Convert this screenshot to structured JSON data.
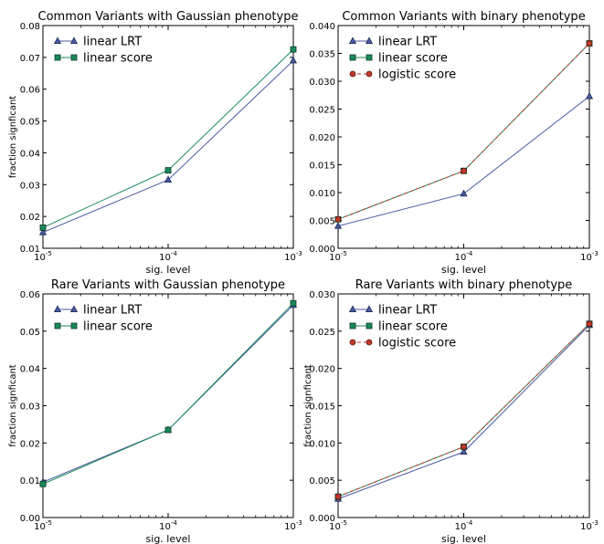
{
  "chart_data": [
    {
      "type": "line",
      "title": "Common Variants with Gaussian phenotype",
      "xlabel": "sig. level",
      "ylabel": "fraction signficant",
      "x_scale": "log",
      "x": [
        1e-05,
        0.0001,
        0.001
      ],
      "x_ticks": [
        "10",
        "10",
        "10"
      ],
      "x_tick_exponents": [
        "-5",
        "-4",
        "-3"
      ],
      "ylim": [
        0.01,
        0.08
      ],
      "y_ticks": [
        "0.01",
        "0.02",
        "0.03",
        "0.04",
        "0.05",
        "0.06",
        "0.07",
        "0.08"
      ],
      "legend_position": "top-left",
      "series": [
        {
          "name": "linear LRT",
          "values": [
            0.015,
            0.0315,
            0.069
          ],
          "color": "#4a5aa0",
          "marker": "triangle",
          "dash": "solid"
        },
        {
          "name": "linear score",
          "values": [
            0.0165,
            0.0345,
            0.0725
          ],
          "color": "#1a8a5a",
          "marker": "square",
          "dash": "solid"
        }
      ]
    },
    {
      "type": "line",
      "title": "Common Variants with binary phenotype",
      "xlabel": "sig. level",
      "ylabel": "",
      "x_scale": "log",
      "x": [
        1e-05,
        0.0001,
        0.001
      ],
      "x_ticks": [
        "10",
        "10",
        "10"
      ],
      "x_tick_exponents": [
        "-5",
        "-4",
        "-3"
      ],
      "ylim": [
        0.0,
        0.04
      ],
      "y_ticks": [
        "0.000",
        "0.005",
        "0.010",
        "0.015",
        "0.020",
        "0.025",
        "0.030",
        "0.035",
        "0.040"
      ],
      "legend_position": "top-left",
      "series": [
        {
          "name": "linear LRT",
          "values": [
            0.004,
            0.0098,
            0.0273
          ],
          "color": "#4a5aa0",
          "marker": "triangle",
          "dash": "solid"
        },
        {
          "name": "linear score",
          "values": [
            0.0052,
            0.0139,
            0.0368
          ],
          "color": "#1a8a5a",
          "marker": "square",
          "dash": "solid"
        },
        {
          "name": "logistic score",
          "values": [
            0.0052,
            0.0139,
            0.0368
          ],
          "color": "#c0392b",
          "marker": "circle",
          "dash": "dashed"
        }
      ]
    },
    {
      "type": "line",
      "title": "Rare Variants with Gaussian phenotype",
      "xlabel": "sig. level",
      "ylabel": "fraction signficant",
      "x_scale": "log",
      "x": [
        1e-05,
        0.0001,
        0.001
      ],
      "x_ticks": [
        "10",
        "10",
        "10"
      ],
      "x_tick_exponents": [
        "-5",
        "-4",
        "-3"
      ],
      "ylim": [
        0.0,
        0.06
      ],
      "y_ticks": [
        "0.00",
        "0.01",
        "0.02",
        "0.03",
        "0.04",
        "0.05",
        "0.06"
      ],
      "legend_position": "top-left",
      "series": [
        {
          "name": "linear LRT",
          "values": [
            0.0095,
            0.0235,
            0.057
          ],
          "color": "#4a5aa0",
          "marker": "triangle",
          "dash": "solid"
        },
        {
          "name": "linear score",
          "values": [
            0.009,
            0.0235,
            0.0575
          ],
          "color": "#1a8a5a",
          "marker": "square",
          "dash": "solid"
        }
      ]
    },
    {
      "type": "line",
      "title": "Rare Variants with binary phenotype",
      "xlabel": "sig. level",
      "ylabel": "fraction signficant",
      "x_scale": "log",
      "x": [
        1e-05,
        0.0001,
        0.001
      ],
      "x_ticks": [
        "10",
        "10",
        "10"
      ],
      "x_tick_exponents": [
        "-5",
        "-4",
        "-3"
      ],
      "ylim": [
        0.0,
        0.03
      ],
      "y_ticks": [
        "0.000",
        "0.005",
        "0.010",
        "0.015",
        "0.020",
        "0.025",
        "0.030"
      ],
      "legend_position": "top-left",
      "series": [
        {
          "name": "linear LRT",
          "values": [
            0.0025,
            0.0088,
            0.0258
          ],
          "color": "#4a5aa0",
          "marker": "triangle",
          "dash": "solid"
        },
        {
          "name": "linear score",
          "values": [
            0.0028,
            0.0095,
            0.026
          ],
          "color": "#1a8a5a",
          "marker": "square",
          "dash": "solid"
        },
        {
          "name": "logistic score",
          "values": [
            0.0028,
            0.0095,
            0.026
          ],
          "color": "#c0392b",
          "marker": "circle",
          "dash": "dashed"
        }
      ]
    }
  ]
}
